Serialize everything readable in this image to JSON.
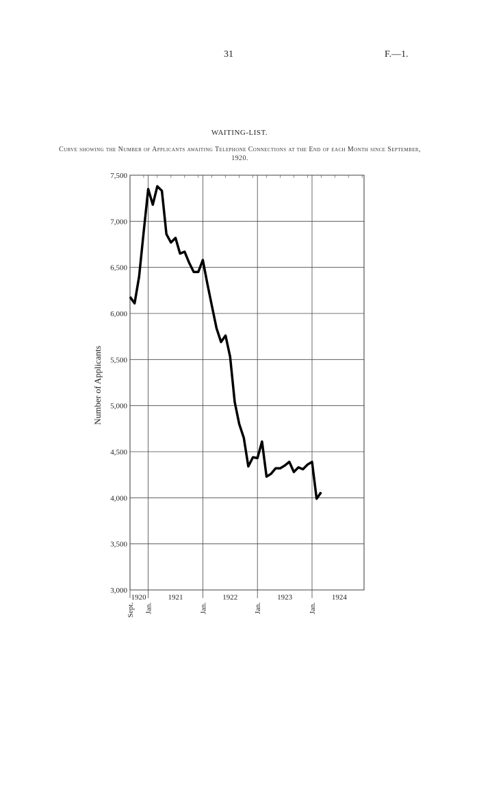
{
  "page_number": "31",
  "reference": "F.—1.",
  "chart_data": {
    "type": "line",
    "title": "WAITING-LIST.",
    "subtitle": "Curve showing the Number of Applicants awaiting Telephone Connections at the End of each Month since September, 1920.",
    "y_label": "Number of Applicants",
    "categories": [
      "Sept.",
      null,
      null,
      null,
      "Jan.",
      null,
      null,
      null,
      null,
      null,
      null,
      null,
      null,
      null,
      null,
      null,
      "Jan.",
      null,
      null,
      null,
      null,
      null,
      null,
      null,
      null,
      null,
      null,
      null,
      "Jan.",
      null,
      null,
      null,
      null,
      null,
      null,
      null,
      null,
      null,
      null,
      null,
      "Jan.",
      null,
      null
    ],
    "year_labels": [
      "1920",
      "1921",
      "1922",
      "1923",
      "1924"
    ],
    "series": [
      {
        "name": "Applicants",
        "color": "#000000",
        "values": [
          6180,
          6110,
          6400,
          6880,
          7350,
          7180,
          7380,
          7330,
          6860,
          6770,
          6820,
          6650,
          6670,
          6550,
          6450,
          6450,
          6580,
          6320,
          6080,
          5840,
          5690,
          5760,
          5530,
          5040,
          4800,
          4650,
          4340,
          4440,
          4430,
          4610,
          4230,
          4260,
          4320,
          4320,
          4350,
          4390,
          4280,
          4330,
          4310,
          4360,
          4390,
          3990,
          4060
        ]
      }
    ],
    "ylim": [
      3000,
      7500
    ],
    "yticks": [
      {
        "value": 3000,
        "label": "3,000"
      },
      {
        "value": 3500,
        "label": "3,500"
      },
      {
        "value": 4000,
        "label": "4,000"
      },
      {
        "value": 4500,
        "label": "4,500"
      },
      {
        "value": 5000,
        "label": "5,000"
      },
      {
        "value": 5500,
        "label": "5,500"
      },
      {
        "value": 6000,
        "label": "6,000"
      },
      {
        "value": 6500,
        "label": "6,500"
      },
      {
        "value": 7000,
        "label": "7,000"
      },
      {
        "value": 7500,
        "label": "7,500"
      }
    ],
    "grid": true
  }
}
